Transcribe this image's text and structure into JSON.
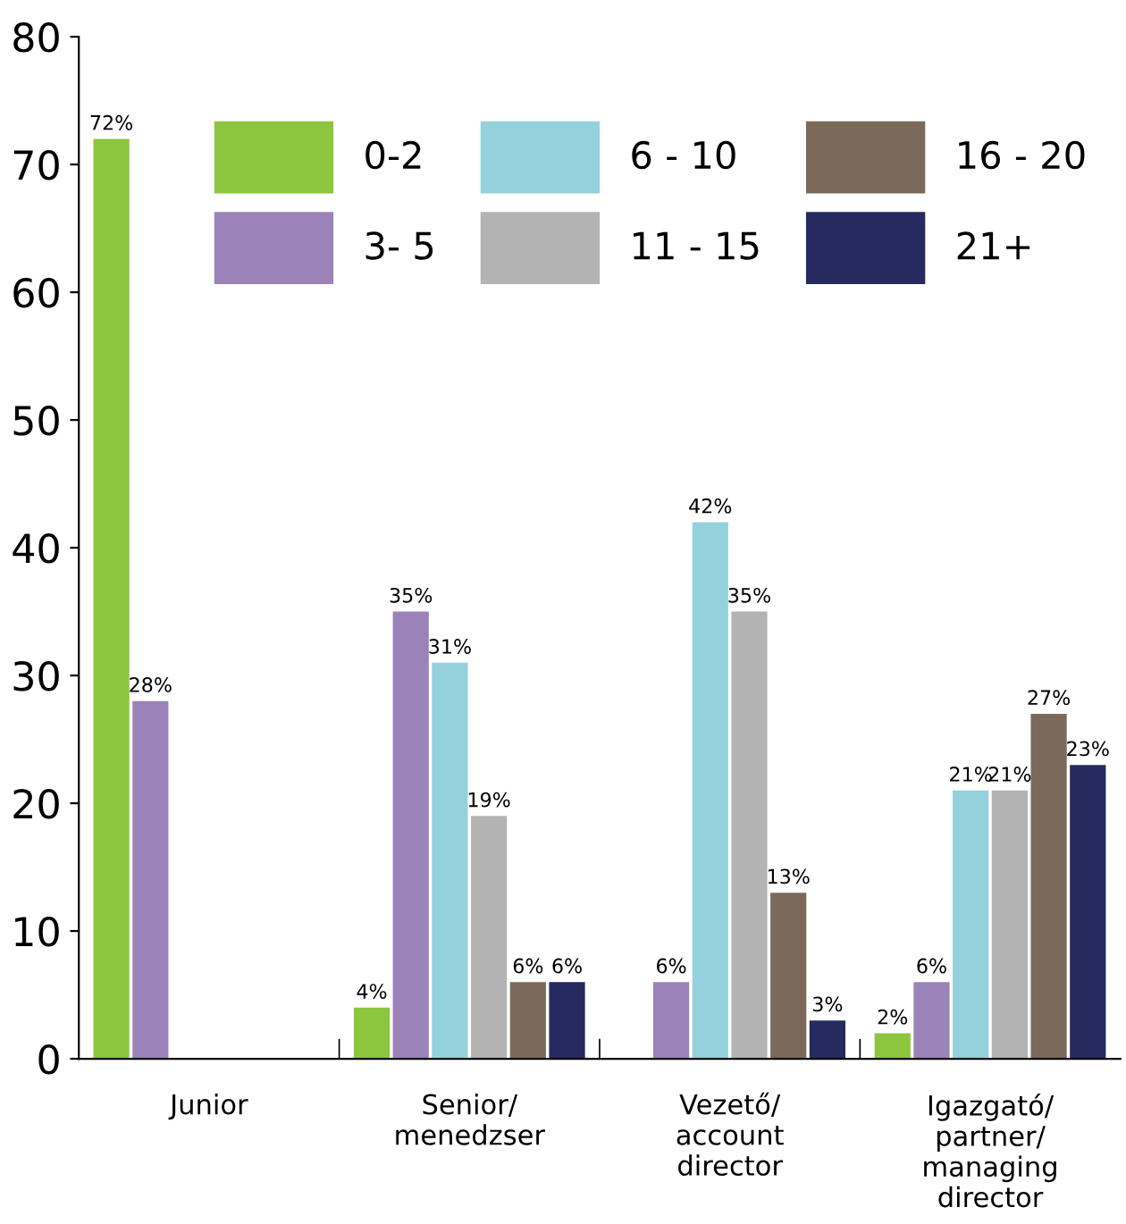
{
  "chart_data": {
    "type": "bar",
    "categories": [
      "Junior",
      "Senior/\nmenedzser",
      "Vezető/\naccount\ndirector",
      "Igazgató/\npartner/\nmanaging\ndirector"
    ],
    "series": [
      {
        "name": "0-2",
        "color": "#8cc63f",
        "values": [
          72,
          4,
          null,
          2
        ],
        "value_labels": [
          "72%",
          "4%",
          null,
          "2%"
        ]
      },
      {
        "name": "3- 5",
        "color": "#9b82b8",
        "values": [
          28,
          35,
          6,
          6
        ],
        "value_labels": [
          "28%",
          "35%",
          "6%",
          "6%"
        ]
      },
      {
        "name": "6 - 10",
        "color": "#93d2dc",
        "values": [
          null,
          31,
          42,
          21
        ],
        "value_labels": [
          null,
          "31%",
          "42%",
          "21%"
        ]
      },
      {
        "name": "11 - 15",
        "color": "#b3b3b3",
        "values": [
          null,
          19,
          35,
          21
        ],
        "value_labels": [
          null,
          "19%",
          "35%",
          "21%"
        ]
      },
      {
        "name": "16 - 20",
        "color": "#7b6a5b",
        "values": [
          null,
          6,
          13,
          27
        ],
        "value_labels": [
          null,
          "6%",
          "13%",
          "27%"
        ]
      },
      {
        "name": "21+",
        "color": "#262a5e",
        "values": [
          null,
          6,
          3,
          23
        ],
        "value_labels": [
          null,
          "6%",
          "3%",
          "23%"
        ]
      }
    ],
    "ylim": [
      0,
      80
    ],
    "yticks": [
      0,
      10,
      20,
      30,
      40,
      50,
      60,
      70,
      80
    ],
    "grid": false,
    "legend": "top right"
  }
}
